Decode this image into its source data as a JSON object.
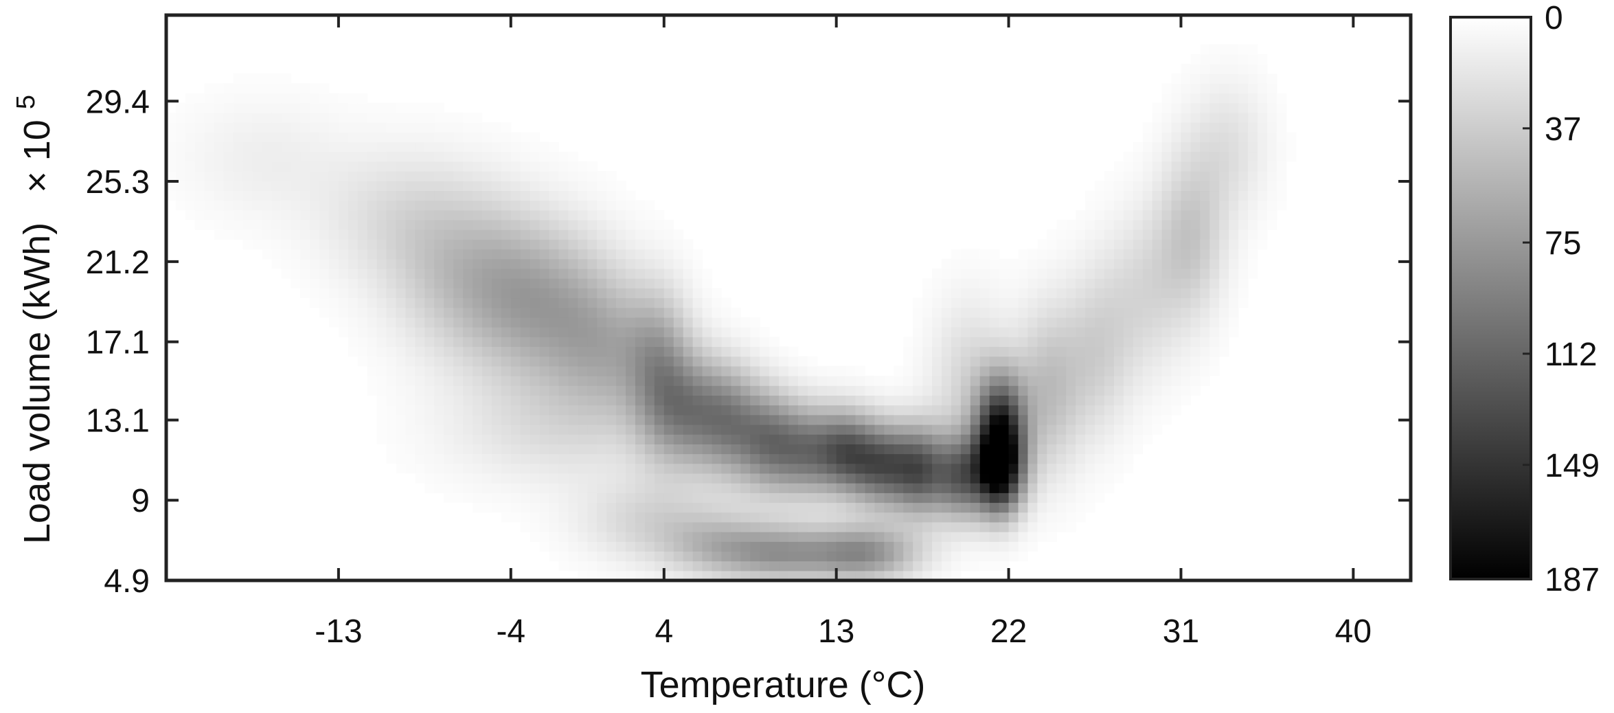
{
  "chart_data": {
    "type": "heatmap",
    "title": "",
    "xlabel": "Temperature (°C)",
    "ylabel": "Load volume (kWh)",
    "ylabel_multiplier": "× 10",
    "ylabel_exponent": "5",
    "xlim": [
      -22,
      43
    ],
    "ylim": [
      4.9,
      33.8
    ],
    "x_ticks": [
      -13,
      -4,
      4,
      13,
      22,
      31,
      40
    ],
    "x_tick_labels": [
      "-13",
      "-4",
      "4",
      "13",
      "22",
      "31",
      "40"
    ],
    "y_ticks": [
      4.9,
      9,
      13.1,
      17.1,
      21.2,
      25.3,
      29.4
    ],
    "y_tick_labels": [
      "4.9",
      "9",
      "13.1",
      "17.1",
      "21.2",
      "25.3",
      "29.4"
    ],
    "colorbar": {
      "colormap": "gray-reversed",
      "min": 0,
      "max": 187,
      "ticks": [
        0,
        37,
        75,
        112,
        149,
        187
      ],
      "tick_labels": [
        "0",
        "37",
        "75",
        "112",
        "149",
        "187"
      ]
    },
    "grid": false,
    "clusters": [
      {
        "x": -17,
        "y": 26.5,
        "value": 12,
        "sx": 3.0,
        "sy": 2.2
      },
      {
        "x": -10,
        "y": 23.5,
        "value": 22,
        "sx": 3.0,
        "sy": 2.5
      },
      {
        "x": -7,
        "y": 20.5,
        "value": 34,
        "sx": 2.5,
        "sy": 3.0
      },
      {
        "x": -4,
        "y": 19.5,
        "value": 42,
        "sx": 2.2,
        "sy": 3.0
      },
      {
        "x": -1,
        "y": 18.5,
        "value": 45,
        "sx": 2.2,
        "sy": 3.0
      },
      {
        "x": 1.5,
        "y": 16.5,
        "value": 40,
        "sx": 2.0,
        "sy": 2.5
      },
      {
        "x": 3.8,
        "y": 15.5,
        "value": 58,
        "sx": 1.2,
        "sy": 2.8
      },
      {
        "x": 5.5,
        "y": 13.5,
        "value": 72,
        "sx": 1.4,
        "sy": 2.0
      },
      {
        "x": 7.5,
        "y": 13.0,
        "value": 65,
        "sx": 1.2,
        "sy": 2.0
      },
      {
        "x": 9.5,
        "y": 12.0,
        "value": 82,
        "sx": 1.2,
        "sy": 1.8
      },
      {
        "x": 11.5,
        "y": 11.5,
        "value": 78,
        "sx": 1.2,
        "sy": 1.6
      },
      {
        "x": 13.5,
        "y": 11.5,
        "value": 95,
        "sx": 1.1,
        "sy": 1.5
      },
      {
        "x": 15.5,
        "y": 10.8,
        "value": 110,
        "sx": 1.2,
        "sy": 1.5
      },
      {
        "x": 17.5,
        "y": 10.5,
        "value": 100,
        "sx": 1.0,
        "sy": 1.6
      },
      {
        "x": 19.5,
        "y": 10.2,
        "value": 95,
        "sx": 0.9,
        "sy": 1.5
      },
      {
        "x": 21.5,
        "y": 10.5,
        "value": 175,
        "sx": 0.9,
        "sy": 1.6
      },
      {
        "x": 21.6,
        "y": 13.0,
        "value": 120,
        "sx": 0.9,
        "sy": 1.8
      },
      {
        "x": 24,
        "y": 14.5,
        "value": 45,
        "sx": 1.2,
        "sy": 3.0
      },
      {
        "x": 26.5,
        "y": 16.5,
        "value": 32,
        "sx": 1.3,
        "sy": 3.0
      },
      {
        "x": 29,
        "y": 19.5,
        "value": 26,
        "sx": 1.5,
        "sy": 3.0
      },
      {
        "x": 31.5,
        "y": 22.5,
        "value": 40,
        "sx": 1.3,
        "sy": 3.0
      },
      {
        "x": 33.5,
        "y": 27.0,
        "value": 22,
        "sx": 1.5,
        "sy": 2.5
      },
      {
        "x": 10,
        "y": 6.3,
        "value": 70,
        "sx": 2.2,
        "sy": 1.0
      },
      {
        "x": 14.5,
        "y": 6.3,
        "value": 80,
        "sx": 2.0,
        "sy": 1.0
      },
      {
        "x": 6.5,
        "y": 6.8,
        "value": 40,
        "sx": 2.0,
        "sy": 1.2
      },
      {
        "x": 3,
        "y": 8.0,
        "value": 28,
        "sx": 2.5,
        "sy": 1.5
      },
      {
        "x": -2,
        "y": 12.5,
        "value": 20,
        "sx": 4.0,
        "sy": 2.0
      },
      {
        "x": 20,
        "y": 15.0,
        "value": 30,
        "sx": 1.5,
        "sy": 3.0
      }
    ]
  }
}
